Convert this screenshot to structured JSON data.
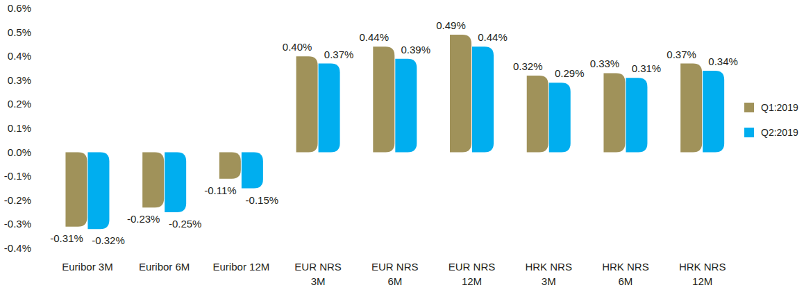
{
  "chart_data": {
    "type": "bar",
    "categories": [
      "Euribor 3M",
      "Euribor 6M",
      "Euribor 12M",
      "EUR NRS 3M",
      "EUR NRS 6M",
      "EUR NRS 12M",
      "HRK NRS 3M",
      "HRK NRS 6M",
      "HRK NRS 12M"
    ],
    "series": [
      {
        "name": "Q1:2019",
        "color": "#a0925a",
        "values": [
          -0.31,
          -0.23,
          -0.11,
          0.4,
          0.44,
          0.49,
          0.32,
          0.33,
          0.37
        ],
        "value_labels": [
          "-0.31%",
          "-0.23%",
          "-0.11%",
          "0.40%",
          "0.44%",
          "0.49%",
          "0.32%",
          "0.33%",
          "0.37%"
        ]
      },
      {
        "name": "Q2:2019",
        "color": "#00aeef",
        "values": [
          -0.32,
          -0.25,
          -0.15,
          0.37,
          0.39,
          0.44,
          0.29,
          0.31,
          0.34
        ],
        "value_labels": [
          "-0.32%",
          "-0.25%",
          "-0.15%",
          "0.37%",
          "0.39%",
          "0.44%",
          "0.29%",
          "0.31%",
          "0.34%"
        ]
      }
    ],
    "ylim": [
      -0.4,
      0.6
    ],
    "yticks": [
      {
        "value": -0.4,
        "label": "-0.4%"
      },
      {
        "value": -0.3,
        "label": "-0.3%"
      },
      {
        "value": -0.2,
        "label": "-0.2%"
      },
      {
        "value": -0.1,
        "label": "-0.1%"
      },
      {
        "value": 0.0,
        "label": "0.0%"
      },
      {
        "value": 0.1,
        "label": "0.1%"
      },
      {
        "value": 0.2,
        "label": "0.2%"
      },
      {
        "value": 0.3,
        "label": "0.3%"
      },
      {
        "value": 0.4,
        "label": "0.4%"
      },
      {
        "value": 0.5,
        "label": "0.5%"
      },
      {
        "value": 0.6,
        "label": "0.6%"
      }
    ],
    "grid": false,
    "data_labels": true,
    "legend": "right"
  }
}
